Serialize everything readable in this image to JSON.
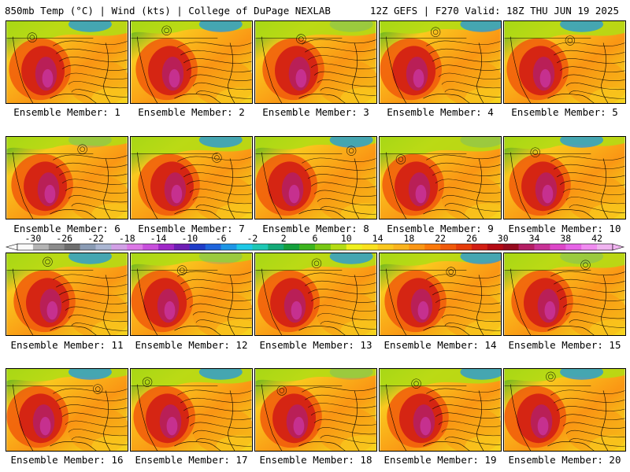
{
  "header": {
    "title_left": "850mb Temp (°C) | Wind (kts) | College of DuPage NEXLAB",
    "title_right": "12Z GEFS | F270 Valid: 18Z THU JUN 19 2025"
  },
  "panel_label_prefix": "Ensemble Member: ",
  "members": [
    1,
    2,
    3,
    4,
    5,
    6,
    7,
    8,
    9,
    10,
    11,
    12,
    13,
    14,
    15,
    16,
    17,
    18,
    19,
    20
  ],
  "colorbar": {
    "ticks": [
      "-30",
      "-26",
      "-22",
      "-18",
      "-14",
      "-10",
      "-6",
      "-2",
      "2",
      "6",
      "10",
      "14",
      "18",
      "22",
      "26",
      "30",
      "34",
      "38",
      "42"
    ],
    "colors": [
      "#fafafa",
      "#b4b4b4",
      "#8c8c8c",
      "#6e6e6e",
      "#8a9bb4",
      "#aab6d2",
      "#d2a0e6",
      "#dc78e6",
      "#c850dc",
      "#a028c8",
      "#6e1eb4",
      "#1e3cc8",
      "#1e64dc",
      "#1e96e6",
      "#1ec8e6",
      "#1ec8b4",
      "#14aa78",
      "#14a03c",
      "#3cb41e",
      "#78c814",
      "#b4dc14",
      "#f0f01e",
      "#fae11e",
      "#fac81e",
      "#fab41e",
      "#fa9614",
      "#fa780a",
      "#f05a0a",
      "#e63c0a",
      "#d21e14",
      "#b40a14",
      "#960a1e",
      "#b41e64",
      "#c83296",
      "#dc46c8",
      "#e664e6",
      "#f08cf0",
      "#f0b4f0"
    ]
  },
  "palette": {
    "cold": "#1e96e6",
    "cool": "#3cb41e",
    "mild": "#b4dc14",
    "warm": "#f0f01e",
    "warmer": "#fac81e",
    "hot": "#fa9614",
    "hotter": "#f05a0a",
    "veryhot": "#d21e14",
    "extreme": "#b41e64",
    "peak": "#c83296",
    "contour": "#000000",
    "border": "#000000"
  }
}
